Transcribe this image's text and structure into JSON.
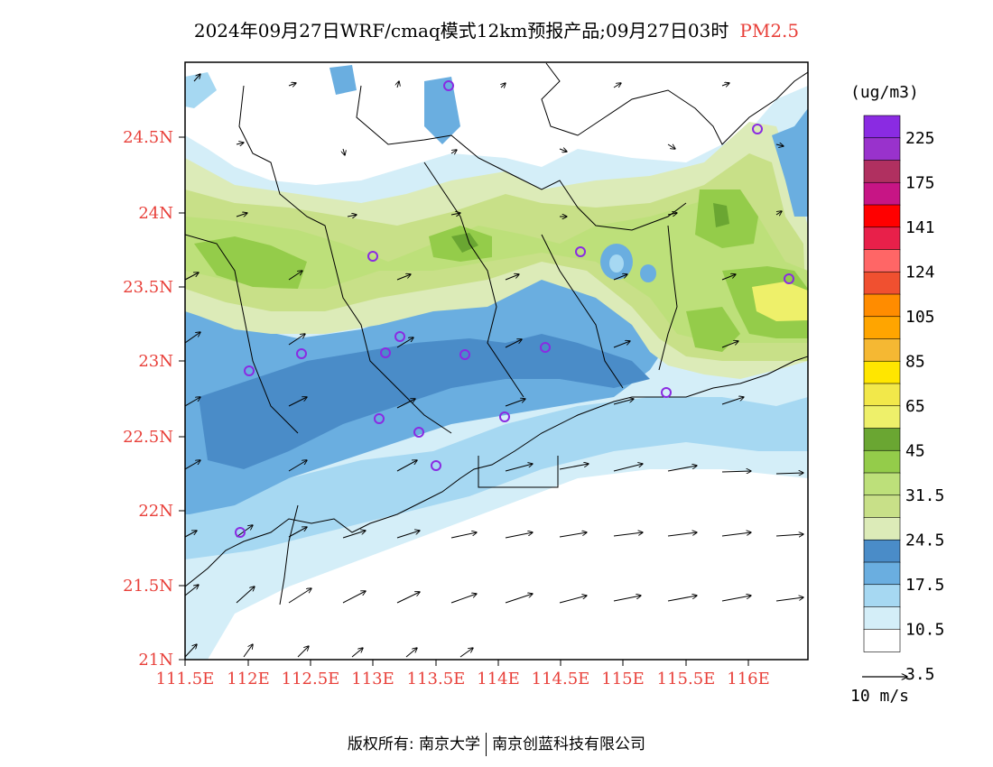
{
  "title": {
    "main": "2024年09月27日WRF/cmaq模式12km预报产品;09月27日03时",
    "pollutant": "PM2.5"
  },
  "units": "(ug/m3)",
  "wind_scale_label": "10 m/s",
  "footer": {
    "copyright": "版权所有: 南京大学",
    "company": "南京创蓝科技有限公司"
  },
  "lat_labels": [
    "24.5N",
    "24N",
    "23.5N",
    "23N",
    "22.5N",
    "22N",
    "21.5N",
    "21N"
  ],
  "lon_labels": [
    "111.5E",
    "112E",
    "112.5E",
    "113E",
    "113.5E",
    "114E",
    "114.5E",
    "115E",
    "115.5E",
    "116E"
  ],
  "legend": {
    "levels": [
      "225",
      "175",
      "141",
      "124",
      "105",
      "85",
      "65",
      "45",
      "31.5",
      "24.5",
      "17.5",
      "10.5",
      "3.5"
    ],
    "colors": [
      "#8a2be2",
      "#9932cc",
      "#b03060",
      "#c71585",
      "#ff0000",
      "#e8204a",
      "#ff6666",
      "#f05030",
      "#ff8c00",
      "#ffa500",
      "#f5b833",
      "#ffe600",
      "#f2e84a",
      "#eef06a",
      "#6aa632",
      "#94cc4a",
      "#bde07a",
      "#c8e088",
      "#dcebb8",
      "#4a8cc8",
      "#6aaee0",
      "#a6d8f2",
      "#d4eef8",
      "#ffffff"
    ]
  },
  "colors": {
    "axis_label": "#e8403a",
    "station_marker": "#8a2be2"
  }
}
